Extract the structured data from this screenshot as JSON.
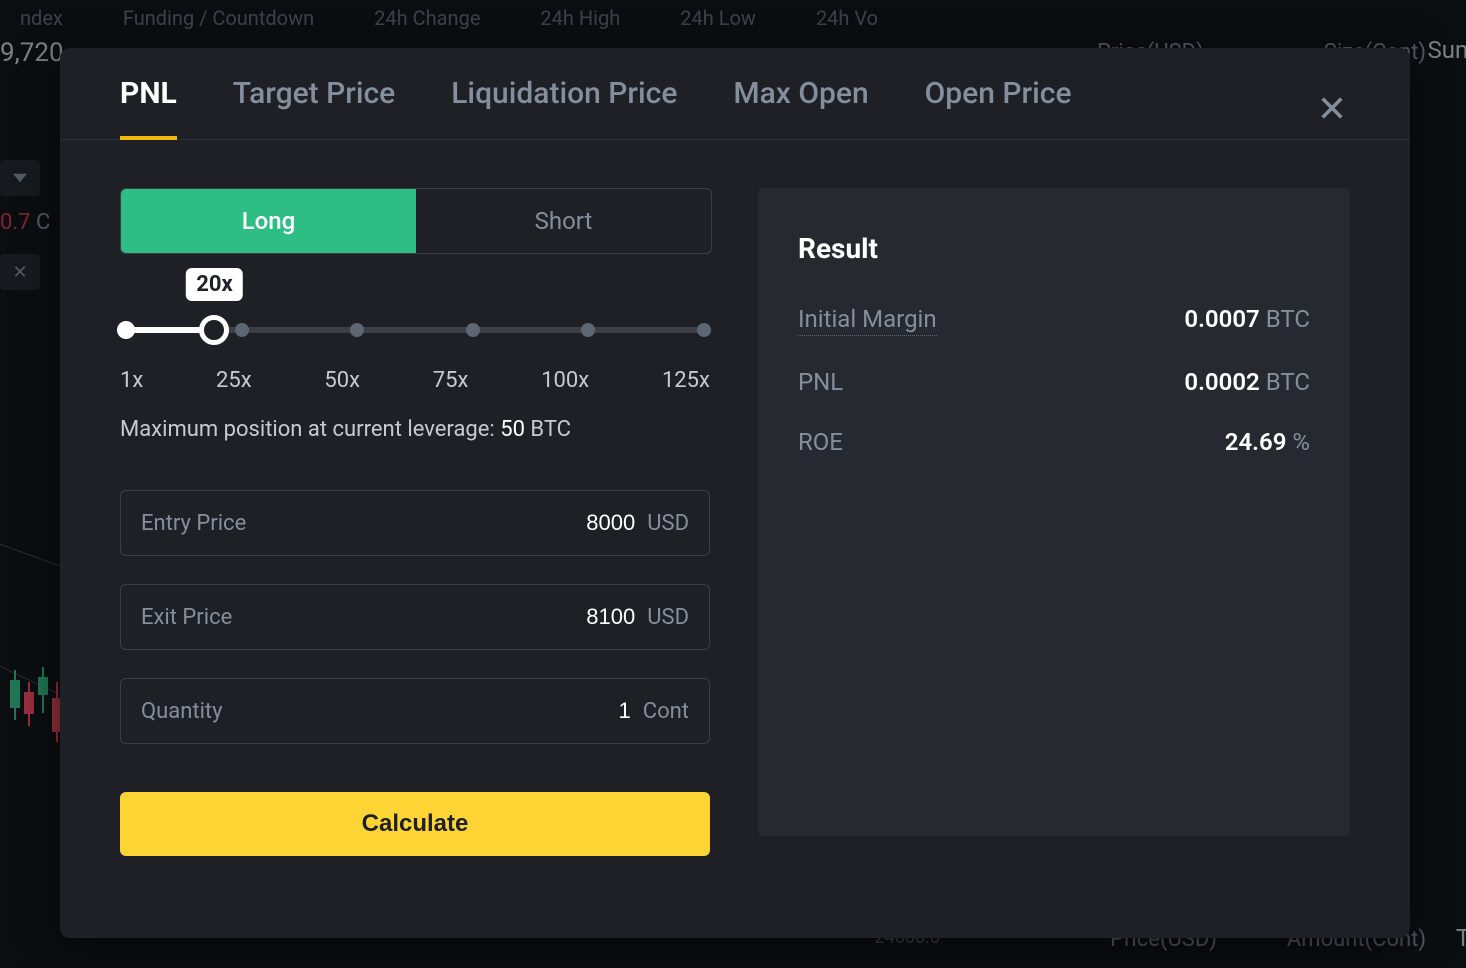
{
  "background": {
    "top_labels": [
      "ndex",
      "Funding / Countdown",
      "24h Change",
      "24h High",
      "24h Low",
      "24h Vo"
    ],
    "price_label": "Price(USD)",
    "size_label": "Size(Cont)",
    "sum_label": "Sum",
    "nine720": "9,720",
    "red07": "0.7",
    "red07_c": "C",
    "bottom_24000": "24000.0",
    "bottom_price": "Price(USD)",
    "bottom_amount": "Amount(Cont)",
    "ti_label": "Ti"
  },
  "tabs": {
    "pnl": "PNL",
    "target_price": "Target Price",
    "liquidation_price": "Liquidation Price",
    "max_open": "Max Open",
    "open_price": "Open Price"
  },
  "position_side": {
    "long": "Long",
    "short": "Short"
  },
  "slider": {
    "badge": "20x",
    "labels": [
      "1x",
      "25x",
      "50x",
      "75x",
      "100x",
      "125x"
    ],
    "fill_pct": 15.3,
    "thumb_pct": 15.3,
    "badge_left_pct": 15.3,
    "stops_pct": [
      0,
      20,
      40,
      60,
      80,
      100
    ]
  },
  "max_position": {
    "prefix": "Maximum position at current leverage: ",
    "value": "50",
    "unit": " BTC"
  },
  "fields": {
    "entry_price": {
      "label": "Entry Price",
      "value": "8000",
      "unit": "USD"
    },
    "exit_price": {
      "label": "Exit Price",
      "value": "8100",
      "unit": "USD"
    },
    "quantity": {
      "label": "Quantity",
      "value": "1",
      "unit": "Cont"
    }
  },
  "calc_button": "Calculate",
  "result": {
    "title": "Result",
    "initial_margin": {
      "label": "Initial Margin",
      "value": "0.0007",
      "unit": "BTC"
    },
    "pnl": {
      "label": "PNL",
      "value": "0.0002",
      "unit": "BTC"
    },
    "roe": {
      "label": "ROE",
      "value": "24.69",
      "unit": "%"
    }
  },
  "colors": {
    "background": "#0b0e11",
    "modal_bg": "#1e2026",
    "panel_bg": "#262930",
    "border": "#3a3f46",
    "text_primary": "#ffffff",
    "text_secondary": "#848e9c",
    "text_muted": "#5e6673",
    "accent_yellow": "#fcd535",
    "tab_underline": "#f0b90b",
    "long_green": "#2ebd85",
    "short_red": "#f6465d"
  }
}
